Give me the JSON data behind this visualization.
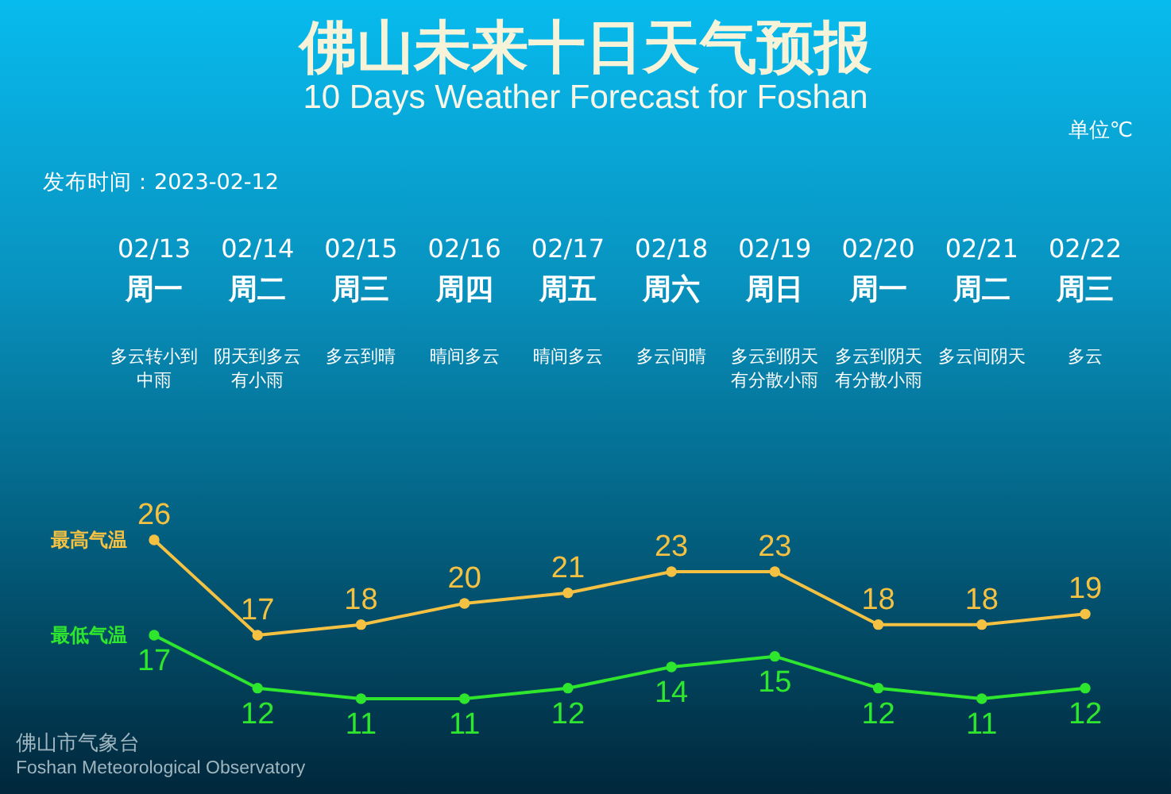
{
  "chart_data": {
    "type": "line",
    "title": "佛山未来十日天气预报",
    "subtitle": "10 Days Weather Forecast for Foshan",
    "categories": [
      "02/13",
      "02/14",
      "02/15",
      "02/16",
      "02/17",
      "02/18",
      "02/19",
      "02/20",
      "02/21",
      "02/22"
    ],
    "series": [
      {
        "name": "最高气温",
        "color": "#f4c142",
        "values": [
          26,
          17,
          18,
          20,
          21,
          23,
          23,
          18,
          18,
          19
        ]
      },
      {
        "name": "最低气温",
        "color": "#2ee62e",
        "values": [
          17,
          12,
          11,
          11,
          12,
          14,
          15,
          12,
          11,
          12
        ]
      }
    ],
    "annotations": [
      "单位℃",
      "发布时间：2023-02-12",
      "周一",
      "周二",
      "周三",
      "周四",
      "周五",
      "周六",
      "周日",
      "周一",
      "周二",
      "周三",
      "多云转小到中雨",
      "阴天到多云有小雨",
      "多云到晴",
      "晴间多云",
      "晴间多云",
      "多云间晴",
      "多云到阴天有分散小雨",
      "多云到阴天有分散小雨",
      "多云间阴天",
      "多云",
      "佛山市气象台",
      "Foshan Meteorological Observatory"
    ],
    "data_labels": true,
    "marker": "circle",
    "line_style": "solid"
  }
}
